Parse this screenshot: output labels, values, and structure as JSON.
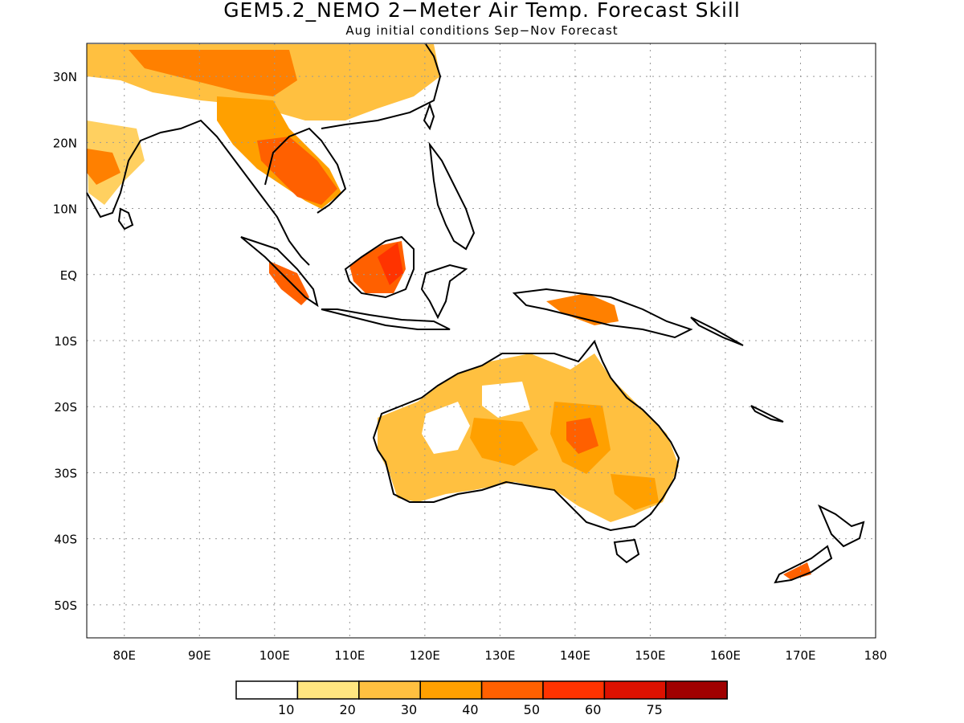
{
  "title": "GEM5.2_NEMO 2−Meter Air Temp. Forecast Skill",
  "subtitle": "Aug initial conditions  Sep−Nov Forecast",
  "map": {
    "lon_range": [
      75,
      180
    ],
    "lat_range": [
      -55,
      35
    ],
    "gridlines": "dotted",
    "lon_ticks": [
      "80E",
      "90E",
      "100E",
      "110E",
      "120E",
      "130E",
      "140E",
      "150E",
      "160E",
      "170E",
      "180"
    ],
    "lat_ticks": [
      "30N",
      "20N",
      "10N",
      "EQ",
      "10S",
      "20S",
      "30S",
      "40S",
      "50S"
    ]
  },
  "colorbar": {
    "labels": [
      "10",
      "20",
      "30",
      "40",
      "50",
      "60",
      "75"
    ],
    "colors": [
      "#ffffff",
      "#ffe680",
      "#ffc040",
      "#ffa000",
      "#ff6000",
      "#ff3300",
      "#dd1100",
      "#a00000"
    ]
  }
}
